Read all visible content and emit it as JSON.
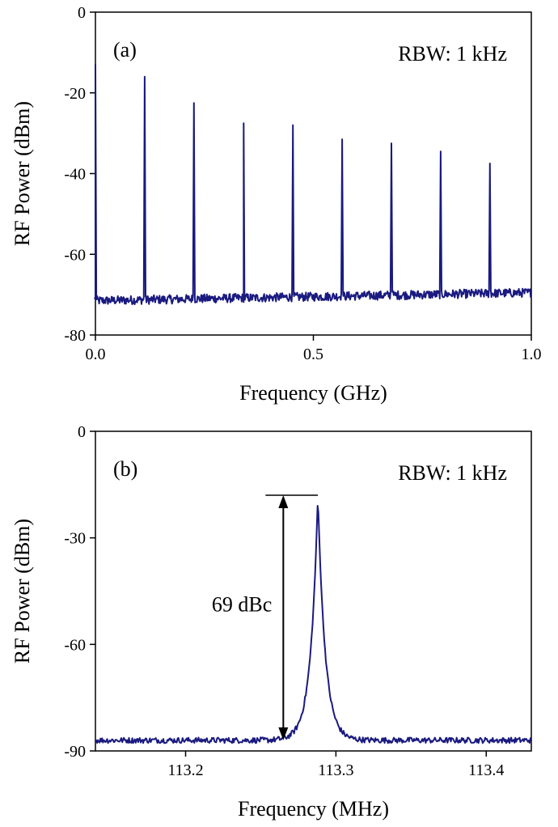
{
  "chart_data": [
    {
      "type": "line",
      "panel_label": "(a)",
      "annotation": "RBW: 1 kHz",
      "xlabel": "Frequency (GHz)",
      "ylabel": "RF Power (dBm)",
      "xlim": [
        0,
        1.0
      ],
      "ylim": [
        -80,
        0
      ],
      "xticks": [
        0.0,
        0.5,
        1.0
      ],
      "xtick_labels": [
        "0.0",
        "0.5",
        "1.0"
      ],
      "yticks": [
        -80,
        -60,
        -40,
        -20,
        0
      ],
      "ytick_labels": [
        "-80",
        "-60",
        "-40",
        "-20",
        "0"
      ],
      "grid": false,
      "line_color": "#1a1a80",
      "noise_floor_dbm": [
        -71.5,
        -69.5
      ],
      "peaks": {
        "x": [
          0.0,
          0.113,
          0.226,
          0.34,
          0.453,
          0.566,
          0.679,
          0.792,
          0.905
        ],
        "y": [
          -13,
          -16,
          -22.5,
          -27.5,
          -28,
          -31.5,
          -32.5,
          -34.5,
          -37.5
        ]
      }
    },
    {
      "type": "line",
      "panel_label": "(b)",
      "annotation": "RBW: 1 kHz",
      "xlabel": "Frequency (MHz)",
      "ylabel": "RF Power (dBm)",
      "xlim": [
        113.14,
        113.43
      ],
      "ylim": [
        -90,
        0
      ],
      "xticks": [
        113.2,
        113.3,
        113.4
      ],
      "xtick_labels": [
        "113.2",
        "113.3",
        "113.4"
      ],
      "yticks": [
        -90,
        -60,
        -30,
        0
      ],
      "ytick_labels": [
        "-90",
        "-60",
        "-30",
        "0"
      ],
      "grid": false,
      "line_color": "#1a1a80",
      "noise_floor_dbm": -87,
      "peak": {
        "x": 113.288,
        "y": -18
      },
      "measurement": {
        "label": "69 dBc",
        "x": 113.265,
        "top_dbm": -18,
        "bottom_dbm": -87
      }
    }
  ]
}
